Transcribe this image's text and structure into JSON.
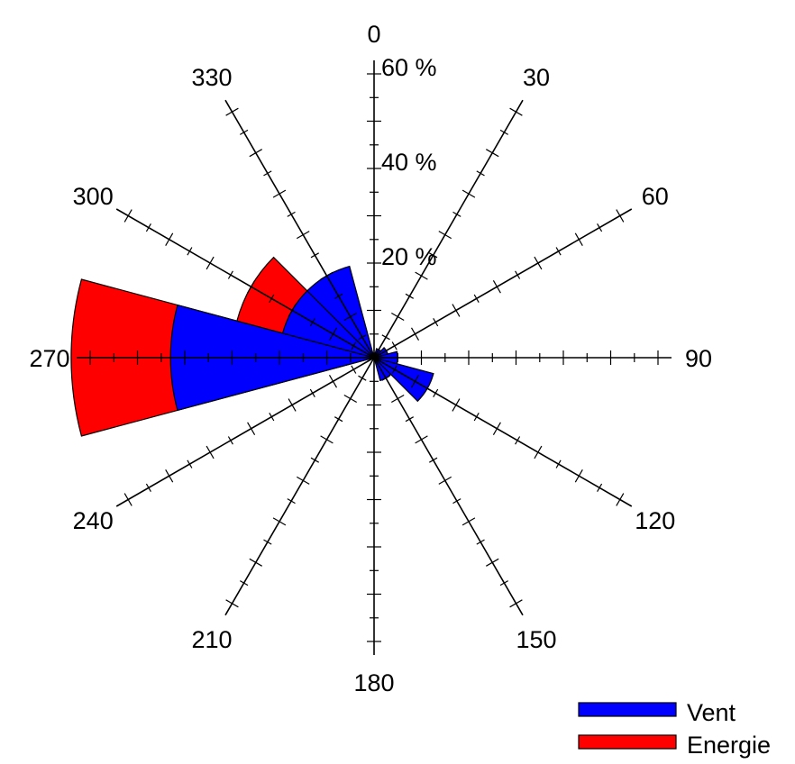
{
  "chart_data": {
    "type": "polar-bar",
    "title": "",
    "direction_labels": [
      "0",
      "30",
      "60",
      "90",
      "120",
      "150",
      "180",
      "210",
      "240",
      "270",
      "300",
      "330"
    ],
    "radial_labels": [
      "20 %",
      "40 %",
      "60 %"
    ],
    "radial_ticks": [
      20,
      40,
      60
    ],
    "rmax": 60,
    "sector_width_deg": 30,
    "legend_position": "bottom-right",
    "series": [
      {
        "name": "Vent",
        "color": "#0000ff",
        "directions": [
          0,
          30,
          60,
          90,
          120,
          150,
          180,
          210,
          240,
          270,
          300,
          330
        ],
        "values": [
          1,
          2,
          3,
          5,
          13,
          5,
          0,
          0,
          0,
          43,
          20,
          20
        ]
      },
      {
        "name": "Energie",
        "color": "#ff0000",
        "directions": [
          0,
          30,
          60,
          90,
          120,
          150,
          180,
          210,
          240,
          270,
          300,
          330
        ],
        "values": [
          0,
          0,
          0,
          1,
          1,
          0,
          0,
          0,
          0,
          64,
          30,
          0
        ]
      }
    ]
  }
}
